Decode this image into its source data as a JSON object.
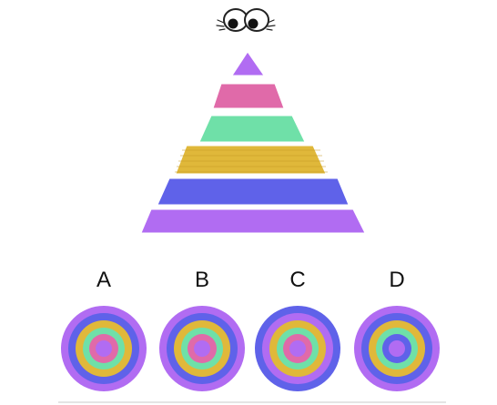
{
  "puzzle": {
    "eyes_icon": "eyes-icon",
    "pyramid_layers": [
      {
        "color": "#b16cf2",
        "name": "purple"
      },
      {
        "color": "#e06aa9",
        "name": "pink"
      },
      {
        "color": "#6fe0a8",
        "name": "green"
      },
      {
        "color": "#e0b83a",
        "name": "yellow"
      },
      {
        "color": "#5f62e9",
        "name": "blue"
      },
      {
        "color": "#b16cf2",
        "name": "purple"
      }
    ],
    "options": [
      {
        "label": "A",
        "rings": [
          "#b16cf2",
          "#5f62e9",
          "#e0b83a",
          "#6fe0a8",
          "#e06aa9",
          "#b16cf2"
        ]
      },
      {
        "label": "B",
        "rings": [
          "#b16cf2",
          "#5f62e9",
          "#e0b83a",
          "#6fe0a8",
          "#e06aa9",
          "#b16cf2"
        ]
      },
      {
        "label": "C",
        "rings": [
          "#5f62e9",
          "#b16cf2",
          "#e0b83a",
          "#6fe0a8",
          "#e06aa9",
          "#b16cf2"
        ]
      },
      {
        "label": "D",
        "rings": [
          "#b16cf2",
          "#5f62e9",
          "#e0b83a",
          "#6fe0a8",
          "#5f62e9",
          "#b16cf2"
        ]
      }
    ]
  }
}
